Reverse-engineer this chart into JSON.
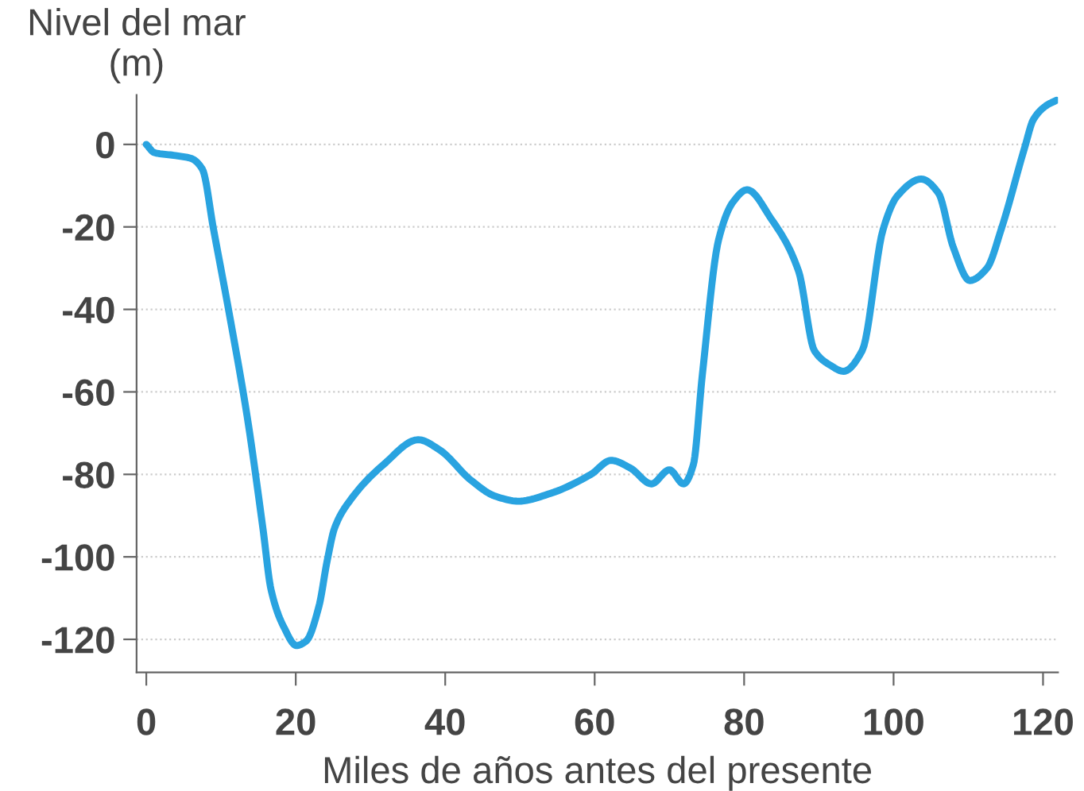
{
  "chart_data": {
    "type": "line",
    "ylabel": "Nivel del mar\n(m)",
    "xlabel": "Miles de años antes del presente",
    "x": [
      0,
      1.1,
      3.9,
      6,
      7.5,
      9,
      11.3,
      13.5,
      15.6,
      16.7,
      18.4,
      20.1,
      21.4,
      23.1,
      24.2,
      25.2,
      27.4,
      31.7,
      36.4,
      39.2,
      43.5,
      46.7,
      49.8,
      54.1,
      59.5,
      62.2,
      64.8,
      67.6,
      70,
      71.9,
      73.2,
      74.4,
      76.6,
      78.5,
      80.4,
      83.6,
      87.3,
      89.4,
      91.5,
      93.3,
      95.8,
      98.6,
      100.5,
      103.7,
      106,
      108,
      110.2,
      112.5,
      114.4,
      117.6,
      118.7,
      120.5,
      121.8
    ],
    "series": [
      {
        "color": "#29a3e0",
        "values": [
          0,
          -2,
          -2.7,
          -3.4,
          -6,
          -20.6,
          -43,
          -66,
          -93,
          -108,
          -117,
          -121.5,
          -120.4,
          -112,
          -101,
          -93,
          -86,
          -77.7,
          -71.6,
          -74,
          -81.5,
          -85.3,
          -86.5,
          -84.6,
          -80,
          -76.6,
          -78.5,
          -82.3,
          -78.9,
          -82.3,
          -77.7,
          -56,
          -23,
          -14,
          -11,
          -18,
          -30.8,
          -50,
          -53.5,
          -55,
          -50,
          -20.6,
          -12.5,
          -8.4,
          -11.8,
          -25,
          -33,
          -30,
          -20.6,
          -0.4,
          6,
          9.5,
          10.7
        ]
      }
    ],
    "xlim": [
      -1.3,
      122
    ],
    "ylim": [
      -128,
      12
    ],
    "xticks": [
      0,
      20,
      40,
      60,
      80,
      100,
      120
    ],
    "yticks": [
      -120,
      -100,
      -80,
      -60,
      -40,
      -20,
      0
    ],
    "grid": "y",
    "marker": "none",
    "line_style": "solid"
  }
}
